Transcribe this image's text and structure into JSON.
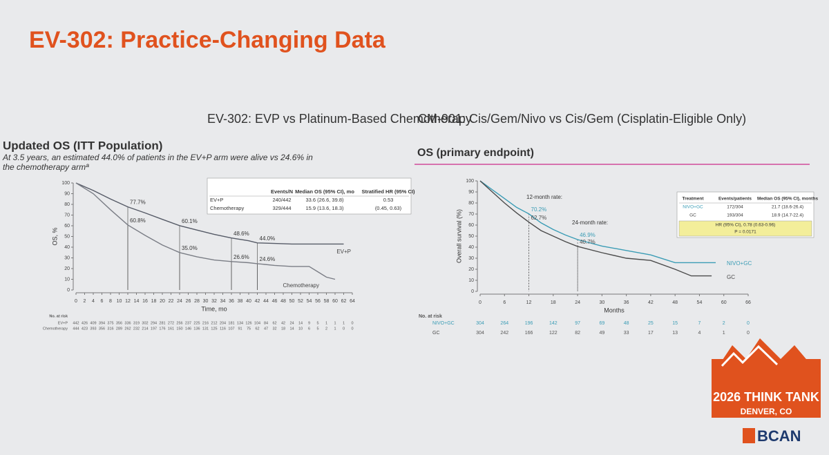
{
  "title": "EV-302: Practice-Changing Data",
  "logo": {
    "event": "2026 THINK TANK",
    "place": "DENVER, CO",
    "org": "BCAN"
  },
  "chart_data": [
    {
      "type": "km",
      "heading": "EV-302: EVP vs Platinum-Based Chemotherapy",
      "title": "Updated OS (ITT Population)",
      "subtitle": "At 3.5 years, an estimated 44.0% of patients in the EV+P arm were alive vs 24.6% in the chemotherapy armª",
      "x_label": "Time, mo",
      "y_label": "OS, %",
      "xlim": [
        0,
        64
      ],
      "xticks": [
        0,
        2,
        4,
        6,
        8,
        10,
        12,
        14,
        16,
        18,
        20,
        22,
        24,
        26,
        28,
        30,
        32,
        34,
        36,
        38,
        40,
        42,
        44,
        46,
        48,
        50,
        52,
        54,
        56,
        58,
        60,
        62,
        64
      ],
      "ylim": [
        0,
        100
      ],
      "yticks": [
        0,
        10,
        20,
        30,
        40,
        50,
        60,
        70,
        80,
        90,
        100
      ],
      "series": [
        {
          "name": "EV+P",
          "color": "#555a66",
          "x": [
            0,
            4,
            8,
            12,
            16,
            20,
            24,
            28,
            32,
            36,
            40,
            42,
            46,
            50,
            54,
            58,
            62
          ],
          "values": [
            100,
            93,
            85,
            77.7,
            72,
            66,
            60.1,
            56,
            52,
            48.6,
            46,
            44,
            43.5,
            43,
            43,
            43,
            43
          ],
          "risk": [
            442,
            426,
            409,
            394,
            375,
            356,
            336,
            319,
            302,
            294,
            281,
            272,
            256,
            237,
            225,
            216,
            212,
            204,
            181,
            134,
            126,
            104,
            84,
            62,
            42,
            24,
            14,
            9,
            5,
            1,
            1,
            1,
            0
          ]
        },
        {
          "name": "Chemotherapy",
          "color": "#7a7d85",
          "x": [
            0,
            4,
            8,
            12,
            16,
            20,
            24,
            28,
            32,
            36,
            40,
            42,
            46,
            50,
            54,
            56,
            58,
            60
          ],
          "values": [
            100,
            90,
            75,
            60.8,
            51,
            42,
            35,
            31,
            28,
            26.6,
            25.5,
            24.6,
            23,
            22,
            22,
            17,
            12,
            10
          ],
          "risk": [
            444,
            423,
            393,
            356,
            316,
            289,
            262,
            232,
            214,
            197,
            176,
            161,
            150,
            146,
            136,
            131,
            125,
            116,
            107,
            91,
            75,
            62,
            47,
            32,
            18,
            14,
            10,
            6,
            5,
            2,
            1,
            0,
            0
          ]
        }
      ],
      "risk_label": "No. at risk",
      "annotations": [
        {
          "x": 12,
          "value": 77.7,
          "label": "77.7%"
        },
        {
          "x": 12,
          "value": 60.8,
          "label": "60.8%"
        },
        {
          "x": 24,
          "value": 60.1,
          "label": "60.1%"
        },
        {
          "x": 24,
          "value": 35.0,
          "label": "35.0%"
        },
        {
          "x": 36,
          "value": 48.6,
          "label": "48.6%"
        },
        {
          "x": 36,
          "value": 26.6,
          "label": "26.6%"
        },
        {
          "x": 42,
          "value": 44.0,
          "label": "44.0%"
        },
        {
          "x": 42,
          "value": 24.6,
          "label": "24.6%"
        }
      ],
      "table": {
        "header": [
          "Events/N",
          "Median OS (95% CI), mo",
          "Stratified HR (95% CI)"
        ],
        "rows": [
          [
            "EV+P",
            "240/442",
            "33.6 (26.6, 39.8)",
            "0.53"
          ],
          [
            "Chemotherapy",
            "329/444",
            "15.9 (13.6, 18.3)",
            "(0.45, 0.63)"
          ]
        ]
      }
    },
    {
      "type": "km",
      "heading": "CM-901: Cis/Gem/Nivo vs Cis/Gem (Cisplatin-Eligible Only)",
      "title": "OS (primary endpoint)",
      "x_label": "Months",
      "y_label": "Overall survival (%)",
      "xlim": [
        0,
        66
      ],
      "xticks": [
        0,
        6,
        12,
        18,
        24,
        30,
        36,
        42,
        48,
        54,
        60,
        66
      ],
      "ylim": [
        0,
        100
      ],
      "yticks": [
        0,
        10,
        20,
        30,
        40,
        50,
        60,
        70,
        80,
        90,
        100
      ],
      "series": [
        {
          "name": "NIVO+GC",
          "color": "#3a9cb5",
          "x": [
            0,
            3,
            6,
            9,
            12,
            15,
            18,
            21,
            24,
            30,
            36,
            42,
            48,
            54,
            58
          ],
          "values": [
            100,
            92,
            84,
            76,
            70.2,
            62,
            56,
            51,
            46.9,
            41,
            37,
            33,
            26,
            26,
            26
          ],
          "risk": [
            304,
            264,
            196,
            142,
            97,
            69,
            48,
            25,
            15,
            7,
            2,
            0
          ]
        },
        {
          "name": "GC",
          "color": "#4a4a4a",
          "x": [
            0,
            3,
            6,
            9,
            12,
            15,
            18,
            21,
            24,
            30,
            36,
            42,
            48,
            52,
            57
          ],
          "values": [
            100,
            90,
            80,
            71,
            62.7,
            55,
            50,
            45,
            40.7,
            35,
            30,
            28,
            20,
            14,
            14
          ],
          "risk": [
            304,
            242,
            166,
            122,
            82,
            49,
            33,
            17,
            13,
            4,
            1,
            0
          ]
        }
      ],
      "risk_label": "No. at risk",
      "notes": [
        "12-month rate:",
        "24-month rate:"
      ],
      "annotations": [
        {
          "x": 12,
          "value": 70.2,
          "label": "70.2%",
          "color": "#3a9cb5"
        },
        {
          "x": 12,
          "value": 62.7,
          "label": "62.7%",
          "color": "#4a4a4a"
        },
        {
          "x": 24,
          "value": 46.9,
          "label": "46.9%",
          "color": "#3a9cb5"
        },
        {
          "x": 24,
          "value": 40.7,
          "label": "40.7%",
          "color": "#4a4a4a"
        }
      ],
      "table": {
        "header": [
          "Treatment",
          "Events/patients",
          "Median OS (95% CI), months"
        ],
        "rows": [
          [
            "NIVO+GC",
            "172/304",
            "21.7 (18.6-26.4)"
          ],
          [
            "GC",
            "193/304",
            "18.9 (14.7-22.4)"
          ]
        ],
        "footer": [
          "HR (95% CI), 0.78 (0.63-0.96)",
          "P = 0.0171"
        ]
      }
    }
  ]
}
